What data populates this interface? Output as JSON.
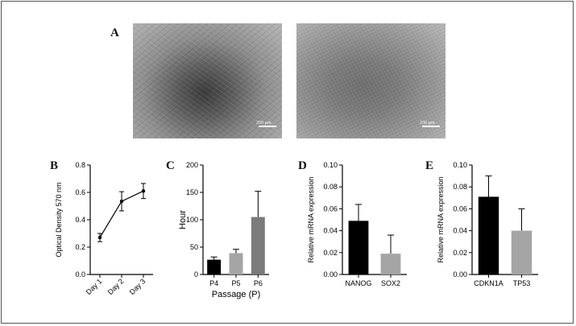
{
  "panel_labels": {
    "a": "A",
    "b": "B",
    "c": "C",
    "d": "D",
    "e": "E"
  },
  "micrographs": {
    "scale_left": "250 µm",
    "scale_right": "250 µm"
  },
  "chart_data": [
    {
      "id": "B",
      "type": "line",
      "categories": [
        "Day 1",
        "Day 2",
        "Day 3"
      ],
      "series": [
        {
          "values": [
            0.27,
            0.535,
            0.61
          ],
          "errors": [
            0.03,
            0.07,
            0.055
          ]
        }
      ],
      "xlabel": "",
      "ylabel": "Optical Density 570 nm",
      "ylim": [
        0,
        0.8
      ],
      "yticks": [
        "0.0",
        "0.2",
        "0.4",
        "0.6",
        "0.8"
      ],
      "colors": {
        "line": "#000000"
      }
    },
    {
      "id": "C",
      "type": "bar",
      "categories": [
        "P4",
        "P5",
        "P6"
      ],
      "values": [
        27,
        39,
        105
      ],
      "errors": [
        5,
        7,
        47
      ],
      "colors": [
        "#000000",
        "#a5a5a5",
        "#7b7b7b"
      ],
      "xlabel": "Passage (P)",
      "ylabel": "Hour",
      "ylim": [
        0,
        200
      ],
      "yticks": [
        "0",
        "50",
        "100",
        "150",
        "200"
      ]
    },
    {
      "id": "D",
      "type": "bar",
      "categories": [
        "NANOG",
        "SOX2"
      ],
      "values": [
        0.049,
        0.019
      ],
      "errors": [
        0.015,
        0.017
      ],
      "colors": [
        "#000000",
        "#a5a5a5"
      ],
      "xlabel": "",
      "ylabel": "Relative mRNA expression",
      "ylim": [
        0,
        0.1
      ],
      "yticks": [
        "0.00",
        "0.02",
        "0.04",
        "0.06",
        "0.08",
        "0.10"
      ]
    },
    {
      "id": "E",
      "type": "bar",
      "categories": [
        "CDKN1A",
        "TP53"
      ],
      "values": [
        0.071,
        0.04
      ],
      "errors": [
        0.019,
        0.02
      ],
      "colors": [
        "#000000",
        "#a5a5a5"
      ],
      "xlabel": "",
      "ylabel": "Relative mRNA expression",
      "ylim": [
        0,
        0.1
      ],
      "yticks": [
        "0.00",
        "0.02",
        "0.04",
        "0.06",
        "0.08",
        "0.10"
      ]
    }
  ]
}
